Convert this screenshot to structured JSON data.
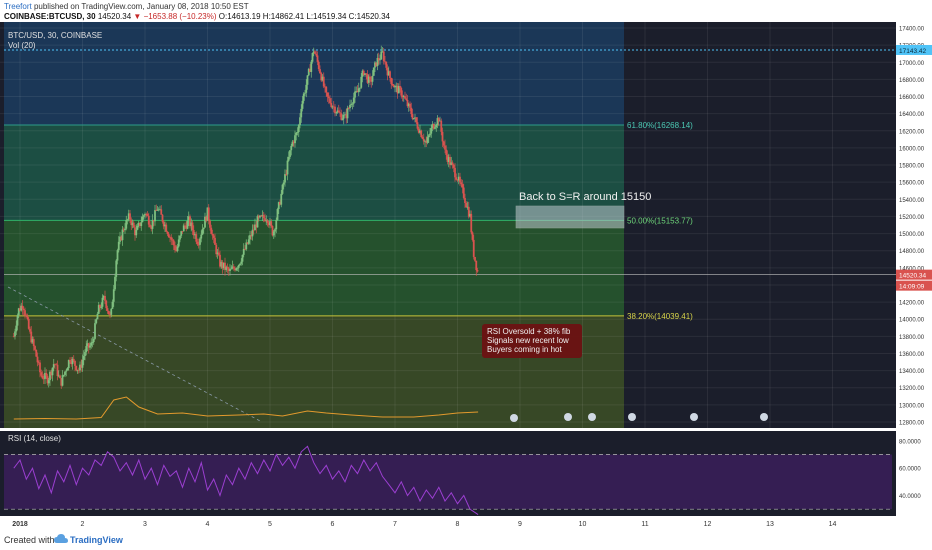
{
  "header": {
    "author": "Treefort",
    "published_text": "published on TradingView.com, January 08, 2018 10:50 EST",
    "symbol": "COINBASE:BTCUSD, 30",
    "last": "14520.34",
    "change": "▼ −1653.88 (−10.23%)",
    "ohlc": "O:14613.19 H:14862.41 L:14519.34 C:14520.34"
  },
  "footer": {
    "created_with": "Created with",
    "brand": "TradingView"
  },
  "chart_data": {
    "type": "candlestick",
    "pane_title": "BTC/USD, 30, COINBASE",
    "volume_label": "Vol (20)",
    "rsi_label": "RSI (14, close)",
    "x_ticks": [
      "2018",
      "2",
      "3",
      "4",
      "5",
      "6",
      "7",
      "8",
      "9",
      "10",
      "11",
      "12",
      "13",
      "14"
    ],
    "y_ticks": [
      "17400.00",
      "17200.00",
      "17000.00",
      "16800.00",
      "16600.00",
      "16400.00",
      "16200.00",
      "16000.00",
      "15800.00",
      "15600.00",
      "15400.00",
      "15200.00",
      "15000.00",
      "14800.00",
      "14600.00",
      "14400.00",
      "14200.00",
      "14000.00",
      "13800.00",
      "13600.00",
      "13400.00",
      "13200.00",
      "13000.00",
      "12800.00"
    ],
    "y_range": [
      12800,
      17400
    ],
    "rsi_ticks": [
      "80.0000",
      "60.0000",
      "40.0000"
    ],
    "rsi_range": [
      25,
      85
    ],
    "rsi_bands": [
      70,
      30
    ],
    "price_labels": {
      "high_line": "17143.42",
      "last_price": "14520.34",
      "countdown": "14:09:09"
    },
    "fib_levels": [
      {
        "label": "61.80%(16268.14)",
        "value": 16268.14
      },
      {
        "label": "50.00%(15153.77)",
        "value": 15153.77
      },
      {
        "label": "38.20%(14039.41)",
        "value": 14039.41
      }
    ],
    "annotations": [
      {
        "text": "Back to S=R around 15150"
      },
      {
        "lines": [
          "RSI Oversold + 38% fib",
          "Signals new recent low",
          "Buyers coming in hot"
        ]
      }
    ],
    "price_path": [
      [
        0.9,
        13800
      ],
      [
        0.97,
        14100
      ],
      [
        1.05,
        14180
      ],
      [
        1.15,
        13850
      ],
      [
        1.25,
        13600
      ],
      [
        1.33,
        13350
      ],
      [
        1.45,
        13300
      ],
      [
        1.55,
        13500
      ],
      [
        1.65,
        13250
      ],
      [
        1.8,
        13550
      ],
      [
        1.95,
        13400
      ],
      [
        2.05,
        13650
      ],
      [
        2.15,
        13700
      ],
      [
        2.25,
        14100
      ],
      [
        2.35,
        14250
      ],
      [
        2.45,
        14000
      ],
      [
        2.55,
        14780
      ],
      [
        2.65,
        15050
      ],
      [
        2.75,
        15200
      ],
      [
        2.85,
        15000
      ],
      [
        3.0,
        15250
      ],
      [
        3.1,
        15100
      ],
      [
        3.2,
        15300
      ],
      [
        3.35,
        15050
      ],
      [
        3.5,
        14800
      ],
      [
        3.6,
        15050
      ],
      [
        3.7,
        15150
      ],
      [
        3.85,
        14900
      ],
      [
        4.0,
        15250
      ],
      [
        4.1,
        14900
      ],
      [
        4.2,
        14650
      ],
      [
        4.35,
        14550
      ],
      [
        4.5,
        14650
      ],
      [
        4.65,
        14900
      ],
      [
        4.8,
        15150
      ],
      [
        4.95,
        15200
      ],
      [
        5.05,
        15000
      ],
      [
        5.15,
        15350
      ],
      [
        5.25,
        15700
      ],
      [
        5.35,
        16050
      ],
      [
        5.45,
        16200
      ],
      [
        5.5,
        16500
      ],
      [
        5.6,
        16800
      ],
      [
        5.7,
        17150
      ],
      [
        5.8,
        16900
      ],
      [
        5.9,
        16600
      ],
      [
        6.0,
        16500
      ],
      [
        6.1,
        16400
      ],
      [
        6.2,
        16350
      ],
      [
        6.3,
        16550
      ],
      [
        6.4,
        16650
      ],
      [
        6.5,
        16900
      ],
      [
        6.6,
        16750
      ],
      [
        6.7,
        17000
      ],
      [
        6.8,
        17100
      ],
      [
        6.9,
        16850
      ],
      [
        7.0,
        16700
      ],
      [
        7.1,
        16650
      ],
      [
        7.2,
        16500
      ],
      [
        7.3,
        16350
      ],
      [
        7.4,
        16200
      ],
      [
        7.5,
        16050
      ],
      [
        7.6,
        16250
      ],
      [
        7.7,
        16350
      ],
      [
        7.8,
        15950
      ],
      [
        7.9,
        15800
      ],
      [
        8.0,
        15650
      ],
      [
        8.1,
        15450
      ],
      [
        8.2,
        15200
      ],
      [
        8.25,
        14800
      ],
      [
        8.33,
        14520
      ]
    ],
    "volume_path": [
      [
        0.9,
        0.3
      ],
      [
        1.4,
        0.35
      ],
      [
        1.9,
        0.3
      ],
      [
        2.3,
        0.45
      ],
      [
        2.5,
        2.2
      ],
      [
        2.7,
        2.5
      ],
      [
        2.9,
        1.5
      ],
      [
        3.2,
        0.8
      ],
      [
        3.6,
        0.9
      ],
      [
        4.0,
        0.6
      ],
      [
        4.5,
        0.7
      ],
      [
        4.9,
        0.8
      ],
      [
        5.2,
        0.6
      ],
      [
        5.6,
        1.1
      ],
      [
        5.9,
        0.9
      ],
      [
        6.3,
        0.7
      ],
      [
        6.8,
        0.5
      ],
      [
        7.3,
        0.5
      ],
      [
        7.7,
        0.7
      ],
      [
        8.0,
        0.9
      ],
      [
        8.33,
        1.0
      ]
    ],
    "rsi_path": [
      [
        0.9,
        60
      ],
      [
        1.0,
        66
      ],
      [
        1.1,
        52
      ],
      [
        1.2,
        60
      ],
      [
        1.3,
        45
      ],
      [
        1.4,
        55
      ],
      [
        1.5,
        42
      ],
      [
        1.6,
        58
      ],
      [
        1.7,
        50
      ],
      [
        1.8,
        62
      ],
      [
        1.9,
        48
      ],
      [
        2.0,
        60
      ],
      [
        2.1,
        55
      ],
      [
        2.2,
        66
      ],
      [
        2.3,
        62
      ],
      [
        2.4,
        72
      ],
      [
        2.5,
        68
      ],
      [
        2.6,
        58
      ],
      [
        2.7,
        64
      ],
      [
        2.8,
        55
      ],
      [
        2.9,
        66
      ],
      [
        3.0,
        52
      ],
      [
        3.1,
        60
      ],
      [
        3.2,
        48
      ],
      [
        3.3,
        62
      ],
      [
        3.4,
        54
      ],
      [
        3.5,
        58
      ],
      [
        3.6,
        46
      ],
      [
        3.7,
        60
      ],
      [
        3.8,
        50
      ],
      [
        3.9,
        64
      ],
      [
        4.0,
        44
      ],
      [
        4.1,
        52
      ],
      [
        4.2,
        40
      ],
      [
        4.3,
        55
      ],
      [
        4.4,
        48
      ],
      [
        4.5,
        60
      ],
      [
        4.6,
        52
      ],
      [
        4.7,
        64
      ],
      [
        4.8,
        56
      ],
      [
        4.9,
        66
      ],
      [
        5.0,
        58
      ],
      [
        5.1,
        70
      ],
      [
        5.2,
        62
      ],
      [
        5.3,
        68
      ],
      [
        5.4,
        60
      ],
      [
        5.5,
        72
      ],
      [
        5.6,
        76
      ],
      [
        5.7,
        64
      ],
      [
        5.8,
        56
      ],
      [
        5.9,
        62
      ],
      [
        6.0,
        52
      ],
      [
        6.1,
        58
      ],
      [
        6.2,
        50
      ],
      [
        6.3,
        62
      ],
      [
        6.4,
        56
      ],
      [
        6.5,
        66
      ],
      [
        6.6,
        58
      ],
      [
        6.7,
        64
      ],
      [
        6.8,
        54
      ],
      [
        6.9,
        48
      ],
      [
        7.0,
        42
      ],
      [
        7.1,
        50
      ],
      [
        7.2,
        40
      ],
      [
        7.3,
        46
      ],
      [
        7.4,
        36
      ],
      [
        7.5,
        44
      ],
      [
        7.6,
        38
      ],
      [
        7.7,
        46
      ],
      [
        7.8,
        36
      ],
      [
        7.9,
        42
      ],
      [
        8.0,
        34
      ],
      [
        8.1,
        40
      ],
      [
        8.2,
        30
      ],
      [
        8.33,
        26
      ]
    ]
  }
}
